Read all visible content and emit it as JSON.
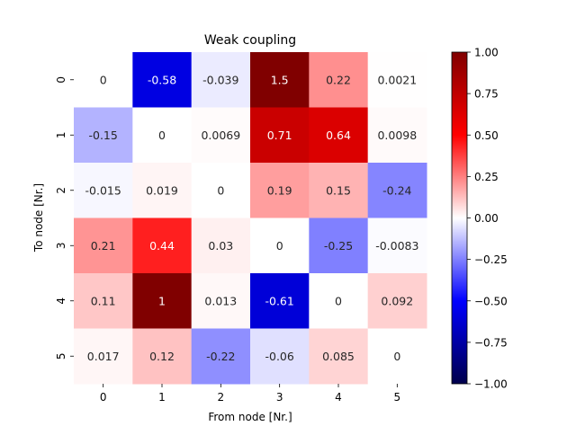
{
  "chart_data": {
    "type": "heatmap",
    "title": "Weak coupling",
    "xlabel": "From node [Nr.]",
    "ylabel": "To node [Nr.]",
    "x_categories": [
      "0",
      "1",
      "2",
      "3",
      "4",
      "5"
    ],
    "y_categories": [
      "0",
      "1",
      "2",
      "3",
      "4",
      "5"
    ],
    "values": [
      [
        0,
        -0.58,
        -0.039,
        1.5,
        0.22,
        0.0021
      ],
      [
        -0.15,
        0,
        0.0069,
        0.71,
        0.64,
        0.0098
      ],
      [
        -0.015,
        0.019,
        0,
        0.19,
        0.15,
        -0.24
      ],
      [
        0.21,
        0.44,
        0.03,
        0,
        -0.25,
        -0.0083
      ],
      [
        0.11,
        1,
        0.013,
        -0.61,
        0,
        0.092
      ],
      [
        0.017,
        0.12,
        -0.22,
        -0.06,
        0.085,
        0
      ]
    ],
    "value_labels": [
      [
        "0",
        "-0.58",
        "-0.039",
        "1.5",
        "0.22",
        "0.0021"
      ],
      [
        "-0.15",
        "0",
        "0.0069",
        "0.71",
        "0.64",
        "0.0098"
      ],
      [
        "-0.015",
        "0.019",
        "0",
        "0.19",
        "0.15",
        "-0.24"
      ],
      [
        "0.21",
        "0.44",
        "0.03",
        "0",
        "-0.25",
        "-0.0083"
      ],
      [
        "0.11",
        "1",
        "0.013",
        "-0.61",
        "0",
        "0.092"
      ],
      [
        "0.017",
        "0.12",
        "-0.22",
        "-0.06",
        "0.085",
        "0"
      ]
    ],
    "colormap": "seismic",
    "vmin": -1.0,
    "vmax": 1.0,
    "colorbar_ticks": [
      1.0,
      0.75,
      0.5,
      0.25,
      0.0,
      -0.25,
      -0.5,
      -0.75,
      -1.0
    ],
    "colorbar_tick_labels": [
      "1.00",
      "0.75",
      "0.50",
      "0.25",
      "0.00",
      "−0.25",
      "−0.50",
      "−0.75",
      "−1.00"
    ],
    "colors": {
      "text_dark": "#262626",
      "text_light": "#ffffff",
      "axis": "#000000"
    }
  }
}
